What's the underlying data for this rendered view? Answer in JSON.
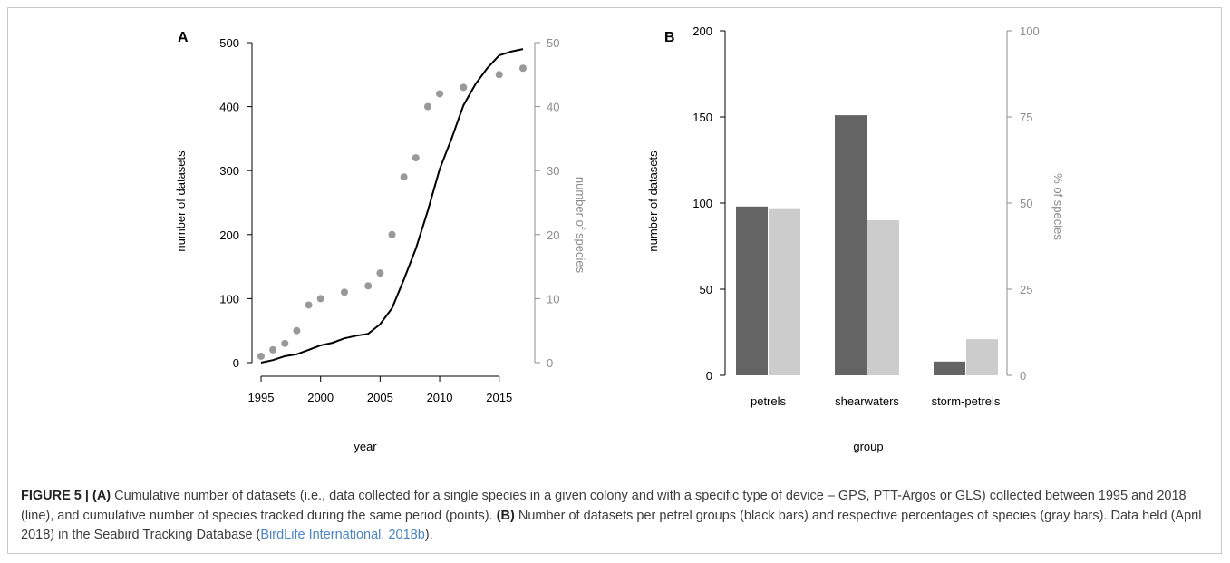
{
  "chart_data": [
    {
      "panel": "A",
      "type": "line",
      "xlabel": "year",
      "ylabel": "number of datasets",
      "y2label": "number of species",
      "xlim": [
        1995,
        2017
      ],
      "ylim": [
        0,
        500
      ],
      "y2lim": [
        0,
        50
      ],
      "xticks": [
        1995,
        2000,
        2005,
        2010,
        2015
      ],
      "yticks": [
        0,
        100,
        200,
        300,
        400,
        500
      ],
      "y2ticks": [
        0,
        10,
        20,
        30,
        40,
        50
      ],
      "grid": false,
      "line": {
        "color": "#000000",
        "x": [
          1995,
          1996,
          1997,
          1998,
          1999,
          2000,
          2001,
          2002,
          2003,
          2004,
          2005,
          2006,
          2007,
          2008,
          2009,
          2010,
          2011,
          2012,
          2013,
          2014,
          2015,
          2016,
          2017
        ],
        "y": [
          0,
          4,
          10,
          13,
          20,
          27,
          31,
          38,
          42,
          45,
          60,
          85,
          130,
          178,
          237,
          302,
          350,
          402,
          435,
          460,
          480,
          486,
          490
        ]
      },
      "points": {
        "color": "#999999",
        "x": [
          1995,
          1996,
          1997,
          1998,
          1999,
          2000,
          2002,
          2004,
          2005,
          2006,
          2007,
          2008,
          2009,
          2010,
          2012,
          2015,
          2017
        ],
        "y": [
          1,
          2,
          3,
          5,
          9,
          10,
          11,
          12,
          14,
          20,
          29,
          32,
          40,
          42,
          43,
          45,
          46
        ]
      }
    },
    {
      "panel": "B",
      "type": "bar",
      "xlabel": "group",
      "ylabel": "number of datasets",
      "y2label": "% of species",
      "categories": [
        "petrels",
        "shearwaters",
        "storm-petrels"
      ],
      "ylim": [
        0,
        200
      ],
      "y2lim": [
        0,
        100
      ],
      "yticks": [
        0,
        50,
        100,
        150,
        200
      ],
      "y2ticks": [
        0,
        25,
        50,
        75,
        100
      ],
      "grid": false,
      "series": [
        {
          "axis": "left",
          "color": "#646464",
          "values": [
            98,
            151,
            8
          ]
        },
        {
          "axis": "right",
          "color": "#cccccc",
          "values": [
            48.5,
            45,
            10.5
          ]
        }
      ]
    }
  ],
  "caption": {
    "label": "FIGURE 5 | ",
    "a_marker": "(A)",
    "a_text": " Cumulative number of datasets (i.e., data collected for a single species in a given colony and with a specific type of device – GPS, PTT-Argos or GLS) collected between 1995 and 2018 (line), and cumulative number of species tracked during the same period (points). ",
    "b_marker": "(B)",
    "b_text": " Number of datasets per petrel groups (black bars) and respective percentages of species (gray bars). Data held (April 2018) in the Seabird Tracking Database (",
    "link_text": "BirdLife International, 2018b",
    "end_text": ")."
  }
}
